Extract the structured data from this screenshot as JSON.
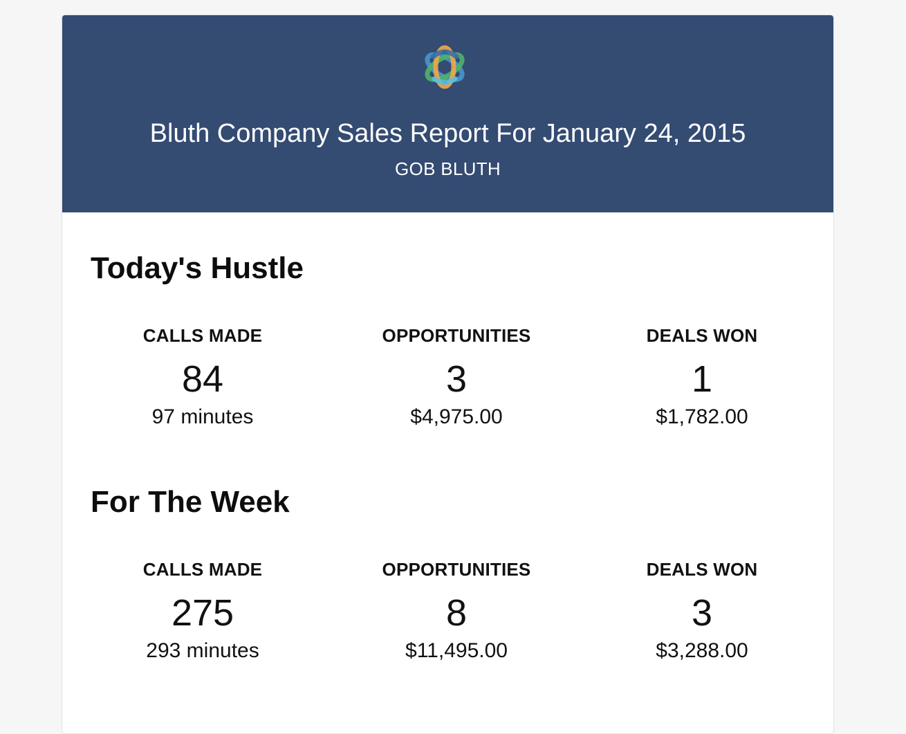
{
  "brand": {
    "logo_icon": "interlocking-rings-logo-icon",
    "header_color": "#344b72",
    "logo_colors": [
      "#4a90c8",
      "#4fb36b",
      "#f3a948",
      "#5bc0de"
    ]
  },
  "header": {
    "title": "Bluth Company Sales Report For January 24, 2015",
    "subtitle": "GOB BLUTH"
  },
  "sections": [
    {
      "title": "Today's Hustle",
      "stats": [
        {
          "label": "CALLS MADE",
          "value": "84",
          "detail": "97 minutes"
        },
        {
          "label": "OPPORTUNITIES",
          "value": "3",
          "detail": "$4,975.00"
        },
        {
          "label": "DEALS WON",
          "value": "1",
          "detail": "$1,782.00"
        }
      ]
    },
    {
      "title": "For The Week",
      "stats": [
        {
          "label": "CALLS MADE",
          "value": "275",
          "detail": "293 minutes"
        },
        {
          "label": "OPPORTUNITIES",
          "value": "8",
          "detail": "$11,495.00"
        },
        {
          "label": "DEALS WON",
          "value": "3",
          "detail": "$3,288.00"
        }
      ]
    }
  ]
}
